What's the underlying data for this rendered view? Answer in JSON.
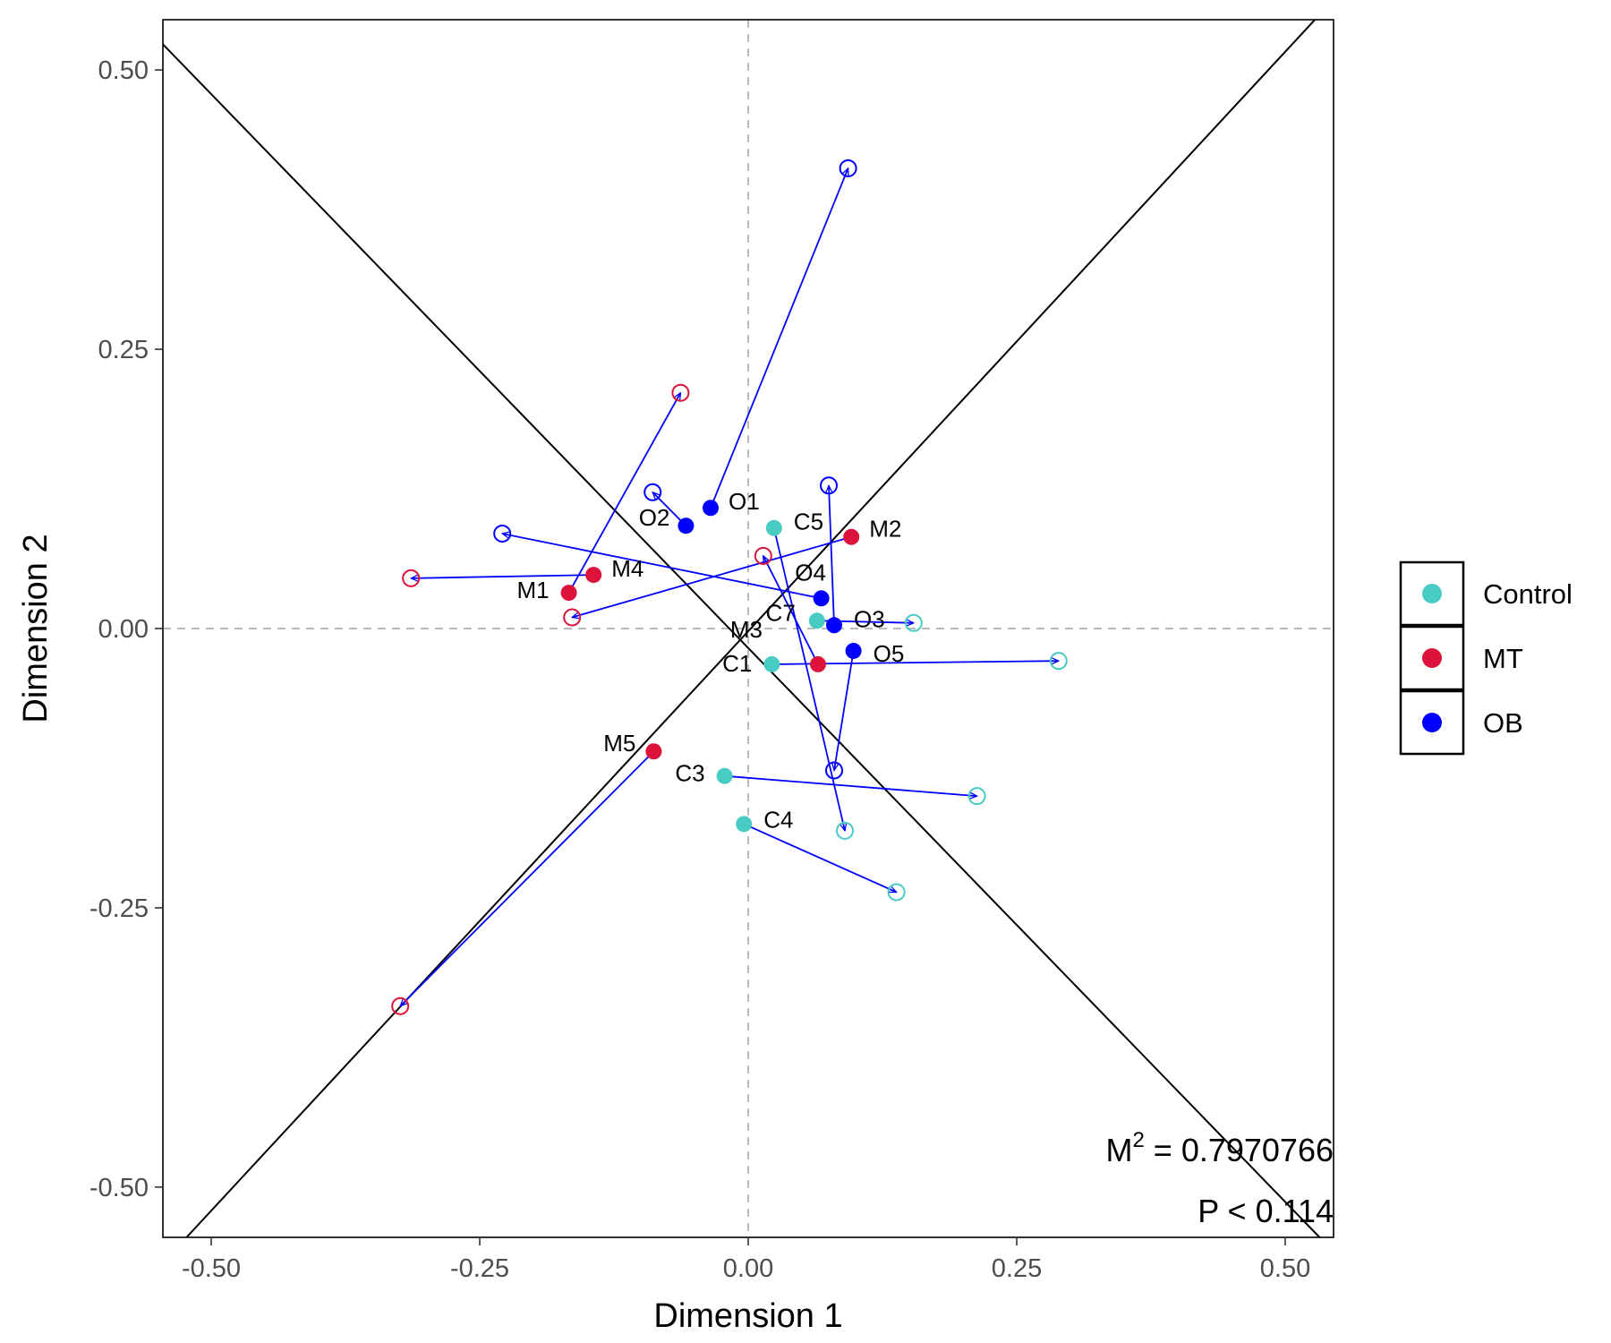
{
  "chart_data": {
    "type": "scatter",
    "subtype": "procrustes",
    "title": "",
    "xlabel": "Dimension 1",
    "ylabel": "Dimension 2",
    "xlim": [
      -0.545,
      0.545
    ],
    "ylim": [
      -0.545,
      0.545
    ],
    "xticks": [
      {
        "value": -0.5,
        "label": "-0.50"
      },
      {
        "value": -0.25,
        "label": "-0.25"
      },
      {
        "value": 0,
        "label": "0.00"
      },
      {
        "value": 0.25,
        "label": "0.25"
      },
      {
        "value": 0.5,
        "label": "0.50"
      }
    ],
    "yticks": [
      {
        "value": -0.5,
        "label": "-0.50"
      },
      {
        "value": -0.25,
        "label": "-0.25"
      },
      {
        "value": 0,
        "label": "0.00"
      },
      {
        "value": 0.25,
        "label": "0.25"
      },
      {
        "value": 0.5,
        "label": "0.50"
      }
    ],
    "grid": false,
    "reference_lines": {
      "x": 0,
      "y": 0,
      "style": "dashed",
      "color": "#bbbbbb"
    },
    "rotation_axes": [
      {
        "from": [
          -0.545,
          0.523
        ],
        "to": [
          0.532,
          -0.545
        ]
      },
      {
        "from": [
          -0.523,
          -0.545
        ],
        "to": [
          0.545,
          0.563
        ]
      }
    ],
    "legend": {
      "position": "right",
      "entries": [
        {
          "label": "Control",
          "color": "#48CBC3"
        },
        {
          "label": "MT",
          "color": "#DC143C"
        },
        {
          "label": "OB",
          "color": "#0000FF"
        }
      ]
    },
    "annotations": [
      {
        "label": "M",
        "superscript": "2",
        "text": " = 0.7970766"
      },
      {
        "text": "P < 0.114"
      }
    ],
    "series": [
      {
        "name": "Control",
        "color": "#48CBC3",
        "points": [
          {
            "label": "C1",
            "x": 0.022,
            "y": -0.032,
            "x_target": 0.289,
            "y_target": -0.029
          },
          {
            "label": "C3",
            "x": -0.022,
            "y": -0.132,
            "x_target": 0.213,
            "y_target": -0.15
          },
          {
            "label": "C4",
            "x": -0.004,
            "y": -0.175,
            "x_target": 0.138,
            "y_target": -0.236
          },
          {
            "label": "C5",
            "x": 0.024,
            "y": 0.09,
            "x_target": 0.09,
            "y_target": -0.181
          },
          {
            "label": "C7",
            "x": 0.064,
            "y": 0.007,
            "x_target": 0.154,
            "y_target": 0.005
          }
        ]
      },
      {
        "name": "MT",
        "color": "#DC143C",
        "points": [
          {
            "label": "M1",
            "x": -0.167,
            "y": 0.032,
            "x_target": -0.063,
            "y_target": 0.211
          },
          {
            "label": "M2",
            "x": 0.096,
            "y": 0.082,
            "x_target": -0.164,
            "y_target": 0.01
          },
          {
            "label": "M3",
            "x": 0.065,
            "y": -0.032,
            "x_target": 0.014,
            "y_target": 0.065
          },
          {
            "label": "M4",
            "x": -0.144,
            "y": 0.048,
            "x_target": -0.314,
            "y_target": 0.045
          },
          {
            "label": "M5",
            "x": -0.088,
            "y": -0.11,
            "x_target": -0.324,
            "y_target": -0.338
          }
        ]
      },
      {
        "name": "OB",
        "color": "#0000FF",
        "points": [
          {
            "label": "O1",
            "x": -0.035,
            "y": 0.108,
            "x_target": 0.093,
            "y_target": 0.412
          },
          {
            "label": "O2",
            "x": -0.058,
            "y": 0.092,
            "x_target": -0.089,
            "y_target": 0.122
          },
          {
            "label": "O3",
            "x": 0.08,
            "y": 0.003,
            "x_target": 0.075,
            "y_target": 0.128
          },
          {
            "label": "O4",
            "x": 0.068,
            "y": 0.027,
            "x_target": -0.229,
            "y_target": 0.085
          },
          {
            "label": "O5",
            "x": 0.098,
            "y": -0.02,
            "x_target": 0.08,
            "y_target": -0.127
          }
        ]
      }
    ]
  }
}
